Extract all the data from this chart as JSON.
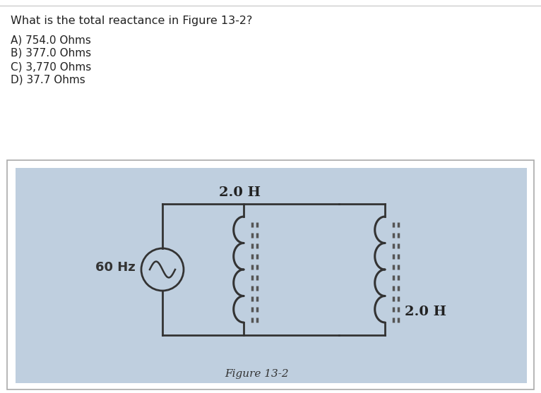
{
  "question": "What is the total reactance in Figure 13-2?",
  "choices": [
    "A) 754.0 Ohms",
    "B) 377.0 Ohms",
    "C) 3,770 Ohms",
    "D) 37.7 Ohms"
  ],
  "figure_label": "Figure 13-2",
  "freq_label": "60 Hz",
  "inductor1_label": "2.0 H",
  "inductor2_label": "2.0 H",
  "bg_color": "#ffffff",
  "circuit_bg": "#bfcfdf",
  "text_color": "#222222",
  "border_color": "#aaaaaa",
  "wire_color": "#333333",
  "core_color": "#555555"
}
